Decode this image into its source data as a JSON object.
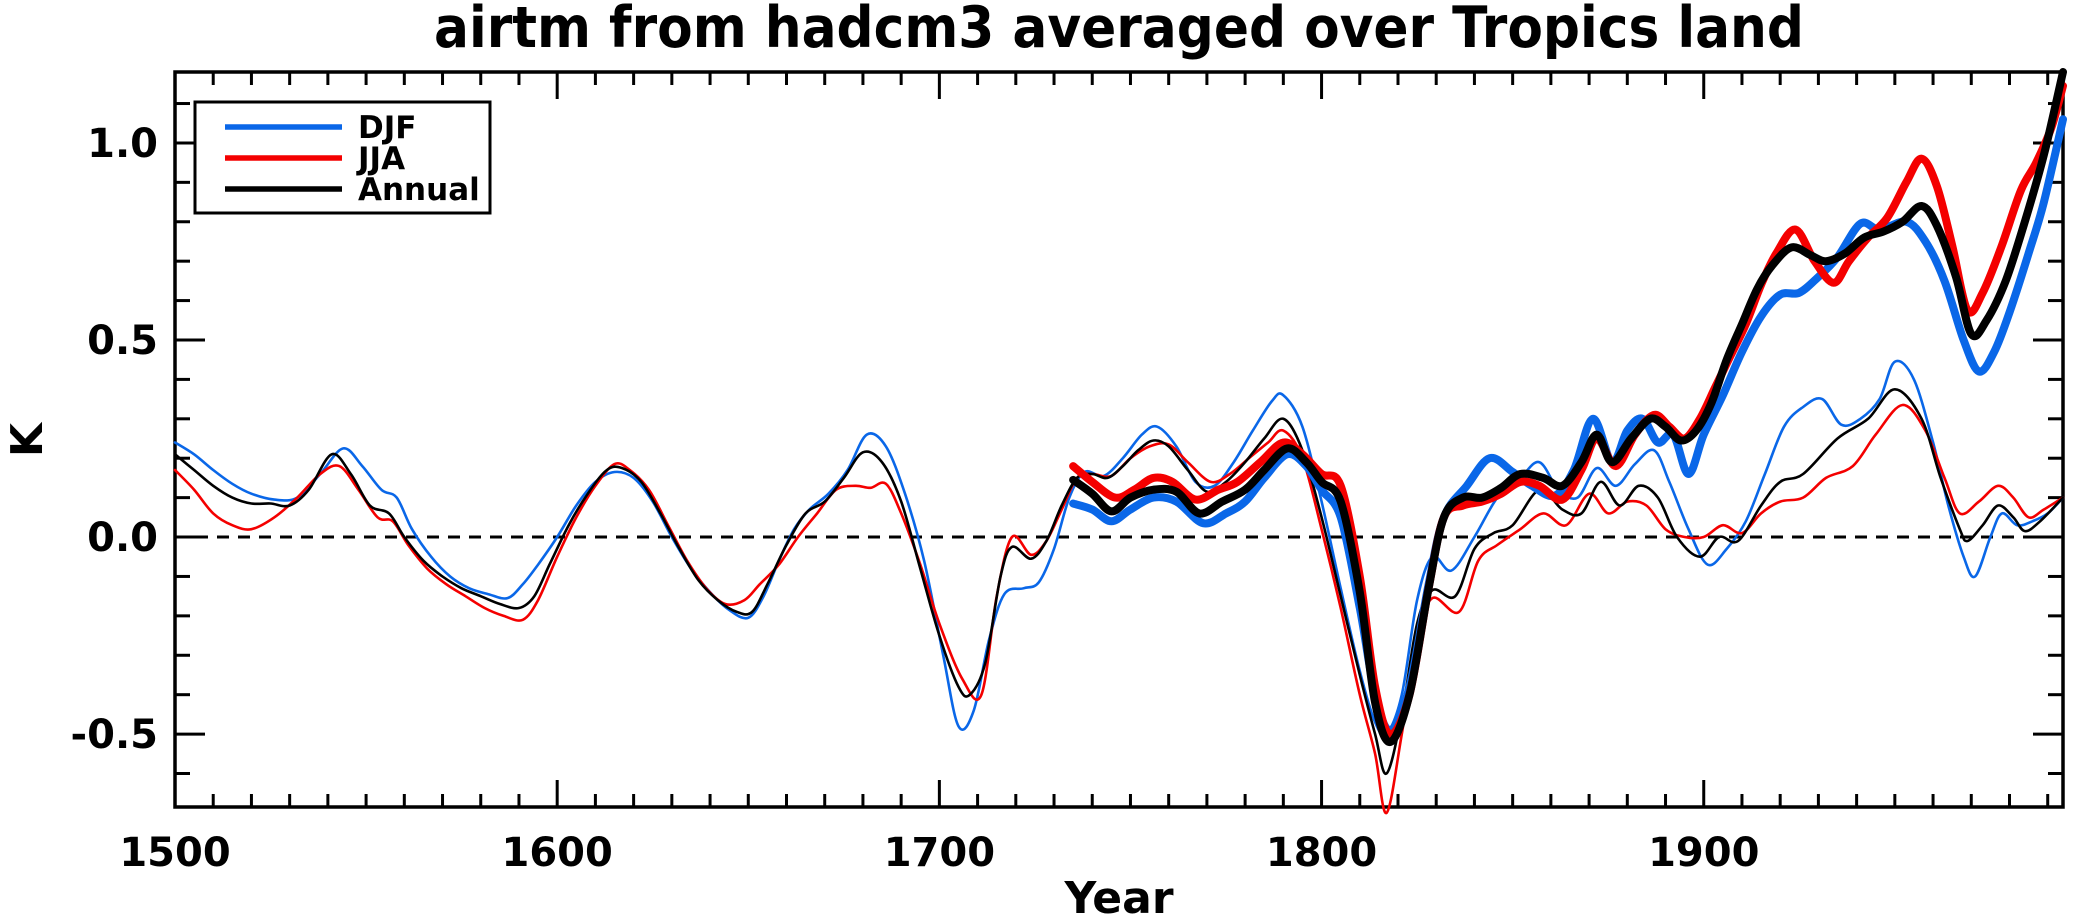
{
  "title": "airtm from hadcm3 averaged over Tropics land",
  "chart_data": {
    "type": "line",
    "title": "airtm from hadcm3 averaged over Tropics land",
    "xlabel": "Year",
    "ylabel": "K",
    "xlim": [
      1500,
      1994
    ],
    "ylim": [
      -0.685,
      1.18
    ],
    "grid": false,
    "background": "#FFFFFF",
    "frame_color": "#000000",
    "zero_line": {
      "value": 0.0,
      "style": "dashed",
      "color": "#000000"
    },
    "x_major_ticks": [
      1500,
      1600,
      1700,
      1800,
      1900
    ],
    "x_tick_labels": [
      "1500",
      "1600",
      "1700",
      "1800",
      "1900"
    ],
    "x_minor_step": 10,
    "y_major_ticks": [
      -0.5,
      0.0,
      0.5,
      1.0
    ],
    "y_tick_labels": [
      "-0.5",
      "0.0",
      "0.5",
      "1.0"
    ],
    "y_minor_step": 0.1,
    "legend": {
      "position": "top-left",
      "entries": [
        {
          "label": "DJF",
          "color": "#0A67E8"
        },
        {
          "label": "JJA",
          "color": "#F40000"
        },
        {
          "label": "Annual",
          "color": "#000000"
        }
      ]
    },
    "series": [
      {
        "name": "djf-natural-thin",
        "label": "DJF",
        "color": "#0A67E8",
        "line": "thin",
        "x": [
          1500,
          1505,
          1510,
          1515,
          1520,
          1526,
          1532,
          1538,
          1544,
          1549,
          1554,
          1558,
          1562,
          1567,
          1572,
          1577,
          1582,
          1587,
          1591,
          1595,
          1600,
          1605,
          1610,
          1615,
          1620,
          1625,
          1630,
          1635,
          1640,
          1645,
          1650,
          1654,
          1658,
          1662,
          1666,
          1671,
          1676,
          1681,
          1686,
          1691,
          1696,
          1701,
          1705,
          1709,
          1713,
          1717,
          1722,
          1726,
          1730,
          1734,
          1738,
          1743,
          1748,
          1753,
          1757,
          1762,
          1767,
          1772,
          1777,
          1782,
          1787,
          1790,
          1795,
          1800,
          1805,
          1810,
          1814,
          1817,
          1821,
          1825,
          1829,
          1834,
          1840,
          1846,
          1852,
          1857,
          1862,
          1867,
          1872,
          1877,
          1882,
          1887,
          1891,
          1896,
          1901,
          1906,
          1911,
          1916,
          1921,
          1926,
          1931,
          1936,
          1941,
          1946,
          1950,
          1955,
          1960,
          1964,
          1968,
          1971,
          1975,
          1978,
          1982,
          1986,
          1990,
          1994
        ],
        "y": [
          0.24,
          0.21,
          0.17,
          0.135,
          0.11,
          0.095,
          0.1,
          0.16,
          0.225,
          0.18,
          0.12,
          0.1,
          0.02,
          -0.05,
          -0.1,
          -0.13,
          -0.145,
          -0.155,
          -0.12,
          -0.07,
          0.0,
          0.08,
          0.14,
          0.165,
          0.15,
          0.09,
          0.0,
          -0.08,
          -0.14,
          -0.185,
          -0.205,
          -0.15,
          -0.06,
          0.02,
          0.07,
          0.11,
          0.17,
          0.26,
          0.23,
          0.11,
          -0.06,
          -0.3,
          -0.48,
          -0.44,
          -0.26,
          -0.145,
          -0.13,
          -0.115,
          -0.03,
          0.1,
          0.165,
          0.155,
          0.2,
          0.26,
          0.28,
          0.23,
          0.14,
          0.13,
          0.19,
          0.27,
          0.345,
          0.36,
          0.28,
          0.09,
          -0.13,
          -0.34,
          -0.47,
          -0.5,
          -0.4,
          -0.16,
          -0.05,
          -0.085,
          0.0,
          0.1,
          0.15,
          0.19,
          0.12,
          0.1,
          0.175,
          0.13,
          0.185,
          0.22,
          0.14,
          0.02,
          -0.07,
          -0.03,
          0.04,
          0.16,
          0.28,
          0.33,
          0.35,
          0.285,
          0.3,
          0.35,
          0.445,
          0.4,
          0.24,
          0.08,
          -0.05,
          -0.1,
          0.0,
          0.06,
          0.03,
          0.04,
          0.06,
          0.1
        ]
      },
      {
        "name": "jja-natural-thin",
        "label": "JJA",
        "color": "#F40000",
        "line": "thin",
        "x": [
          1500,
          1505,
          1510,
          1515,
          1520,
          1526,
          1532,
          1538,
          1543,
          1548,
          1553,
          1557,
          1561,
          1566,
          1571,
          1576,
          1581,
          1586,
          1591,
          1595,
          1600,
          1605,
          1610,
          1615,
          1619,
          1624,
          1629,
          1634,
          1639,
          1644,
          1649,
          1653,
          1658,
          1663,
          1668,
          1673,
          1678,
          1682,
          1686,
          1690,
          1695,
          1700,
          1706,
          1711,
          1715,
          1719,
          1724,
          1728,
          1732,
          1736,
          1740,
          1745,
          1750,
          1755,
          1760,
          1765,
          1771,
          1776,
          1781,
          1786,
          1790,
          1795,
          1800,
          1805,
          1810,
          1814,
          1817,
          1821,
          1825,
          1829,
          1836,
          1841,
          1846,
          1852,
          1858,
          1864,
          1870,
          1875,
          1880,
          1885,
          1890,
          1895,
          1900,
          1905,
          1910,
          1915,
          1920,
          1926,
          1932,
          1939,
          1945,
          1952,
          1958,
          1963,
          1967,
          1972,
          1977,
          1981,
          1985,
          1989,
          1994
        ],
        "y": [
          0.17,
          0.12,
          0.06,
          0.03,
          0.02,
          0.05,
          0.1,
          0.16,
          0.18,
          0.12,
          0.05,
          0.04,
          -0.02,
          -0.08,
          -0.12,
          -0.15,
          -0.18,
          -0.2,
          -0.21,
          -0.16,
          -0.05,
          0.05,
          0.13,
          0.185,
          0.17,
          0.12,
          0.03,
          -0.06,
          -0.13,
          -0.17,
          -0.16,
          -0.12,
          -0.07,
          0.0,
          0.06,
          0.12,
          0.13,
          0.125,
          0.135,
          0.06,
          -0.07,
          -0.22,
          -0.36,
          -0.4,
          -0.15,
          0.0,
          -0.045,
          -0.01,
          0.07,
          0.15,
          0.16,
          0.155,
          0.2,
          0.23,
          0.235,
          0.19,
          0.14,
          0.16,
          0.2,
          0.24,
          0.27,
          0.2,
          0.02,
          -0.18,
          -0.4,
          -0.55,
          -0.7,
          -0.5,
          -0.26,
          -0.155,
          -0.19,
          -0.06,
          -0.02,
          0.02,
          0.06,
          0.03,
          0.11,
          0.06,
          0.09,
          0.08,
          0.02,
          0.0,
          0.0,
          0.03,
          0.01,
          0.06,
          0.09,
          0.1,
          0.15,
          0.18,
          0.26,
          0.335,
          0.27,
          0.15,
          0.06,
          0.09,
          0.13,
          0.1,
          0.05,
          0.07,
          0.1
        ]
      },
      {
        "name": "annual-natural-thin",
        "label": "Annual",
        "color": "#000000",
        "line": "thin",
        "x": [
          1500,
          1505,
          1510,
          1515,
          1520,
          1525,
          1530,
          1535,
          1541,
          1546,
          1551,
          1556,
          1560,
          1565,
          1570,
          1575,
          1580,
          1585,
          1590,
          1594,
          1598,
          1603,
          1608,
          1613,
          1617,
          1622,
          1627,
          1632,
          1637,
          1642,
          1647,
          1651,
          1655,
          1660,
          1665,
          1670,
          1675,
          1680,
          1685,
          1690,
          1695,
          1700,
          1705,
          1708,
          1712,
          1716,
          1719,
          1724,
          1728,
          1732,
          1736,
          1740,
          1744,
          1748,
          1752,
          1756,
          1760,
          1765,
          1770,
          1775,
          1780,
          1785,
          1790,
          1795,
          1800,
          1805,
          1810,
          1814,
          1817,
          1821,
          1825,
          1829,
          1835,
          1840,
          1845,
          1850,
          1857,
          1863,
          1868,
          1873,
          1878,
          1883,
          1888,
          1893,
          1899,
          1904,
          1909,
          1915,
          1920,
          1926,
          1935,
          1943,
          1950,
          1957,
          1962,
          1967,
          1969,
          1973,
          1977,
          1981,
          1984,
          1988,
          1994
        ],
        "y": [
          0.21,
          0.17,
          0.13,
          0.1,
          0.085,
          0.085,
          0.08,
          0.12,
          0.21,
          0.16,
          0.08,
          0.06,
          0.0,
          -0.06,
          -0.1,
          -0.13,
          -0.15,
          -0.17,
          -0.18,
          -0.15,
          -0.07,
          0.03,
          0.11,
          0.17,
          0.175,
          0.14,
          0.06,
          -0.03,
          -0.11,
          -0.16,
          -0.19,
          -0.19,
          -0.12,
          -0.02,
          0.06,
          0.09,
          0.15,
          0.215,
          0.19,
          0.09,
          -0.08,
          -0.25,
          -0.38,
          -0.4,
          -0.32,
          -0.1,
          -0.025,
          -0.055,
          -0.01,
          0.08,
          0.15,
          0.16,
          0.15,
          0.18,
          0.22,
          0.245,
          0.23,
          0.17,
          0.115,
          0.14,
          0.19,
          0.25,
          0.3,
          0.22,
          0.05,
          -0.15,
          -0.35,
          -0.5,
          -0.6,
          -0.45,
          -0.22,
          -0.135,
          -0.15,
          -0.03,
          0.01,
          0.03,
          0.12,
          0.07,
          0.06,
          0.14,
          0.08,
          0.13,
          0.1,
          0.0,
          -0.05,
          0.0,
          -0.01,
          0.08,
          0.14,
          0.16,
          0.25,
          0.3,
          0.375,
          0.3,
          0.15,
          0.02,
          -0.01,
          0.03,
          0.08,
          0.05,
          0.015,
          0.04,
          0.1
        ]
      },
      {
        "name": "djf-allforcings-thick",
        "label": "DJF",
        "color": "#0A67E8",
        "line": "thick",
        "x": [
          1735,
          1740,
          1745,
          1750,
          1756,
          1762,
          1769,
          1775,
          1780,
          1785,
          1791,
          1796,
          1800,
          1805,
          1810,
          1814,
          1818,
          1823,
          1828,
          1832,
          1838,
          1844,
          1850,
          1855,
          1861,
          1866,
          1871,
          1876,
          1880,
          1884,
          1888,
          1892,
          1896,
          1900,
          1905,
          1910,
          1915,
          1920,
          1925,
          1930,
          1935,
          1941,
          1946,
          1953,
          1958,
          1963,
          1968,
          1972,
          1976,
          1980,
          1985,
          1989,
          1994
        ],
        "y": [
          0.085,
          0.07,
          0.04,
          0.07,
          0.1,
          0.09,
          0.035,
          0.06,
          0.09,
          0.15,
          0.21,
          0.18,
          0.12,
          0.05,
          -0.18,
          -0.4,
          -0.49,
          -0.38,
          -0.12,
          0.05,
          0.13,
          0.2,
          0.165,
          0.13,
          0.105,
          0.17,
          0.3,
          0.19,
          0.27,
          0.3,
          0.24,
          0.26,
          0.16,
          0.26,
          0.36,
          0.47,
          0.56,
          0.615,
          0.62,
          0.66,
          0.71,
          0.795,
          0.78,
          0.8,
          0.75,
          0.65,
          0.5,
          0.42,
          0.47,
          0.57,
          0.72,
          0.85,
          1.06
        ]
      },
      {
        "name": "jja-allforcings-thick",
        "label": "JJA",
        "color": "#F40000",
        "line": "thick",
        "x": [
          1735,
          1740,
          1746,
          1751,
          1756,
          1761,
          1767,
          1773,
          1778,
          1784,
          1790,
          1795,
          1800,
          1805,
          1810,
          1814,
          1818,
          1823,
          1828,
          1832,
          1837,
          1842,
          1847,
          1852,
          1857,
          1863,
          1868,
          1872,
          1877,
          1882,
          1887,
          1891,
          1895,
          1899,
          1903,
          1907,
          1911,
          1915,
          1919,
          1924,
          1929,
          1934,
          1938,
          1943,
          1948,
          1953,
          1957,
          1961,
          1965,
          1969,
          1973,
          1978,
          1983,
          1987,
          1991,
          1994
        ],
        "y": [
          0.18,
          0.14,
          0.1,
          0.12,
          0.15,
          0.14,
          0.095,
          0.12,
          0.14,
          0.19,
          0.24,
          0.21,
          0.16,
          0.13,
          -0.1,
          -0.38,
          -0.5,
          -0.4,
          -0.13,
          0.05,
          0.08,
          0.09,
          0.11,
          0.14,
          0.13,
          0.095,
          0.17,
          0.25,
          0.18,
          0.26,
          0.31,
          0.28,
          0.25,
          0.3,
          0.38,
          0.46,
          0.54,
          0.64,
          0.72,
          0.78,
          0.7,
          0.645,
          0.7,
          0.76,
          0.81,
          0.9,
          0.96,
          0.89,
          0.74,
          0.575,
          0.62,
          0.74,
          0.88,
          0.95,
          1.04,
          1.145
        ]
      },
      {
        "name": "annual-allforcings-thick",
        "label": "Annual",
        "color": "#000000",
        "line": "thick",
        "x": [
          1735,
          1740,
          1745,
          1750,
          1756,
          1762,
          1768,
          1774,
          1780,
          1785,
          1791,
          1796,
          1800,
          1805,
          1810,
          1814,
          1818,
          1823,
          1828,
          1832,
          1837,
          1842,
          1847,
          1852,
          1858,
          1863,
          1868,
          1872,
          1876,
          1881,
          1886,
          1890,
          1894,
          1898,
          1902,
          1906,
          1910,
          1914,
          1918,
          1923,
          1928,
          1932,
          1937,
          1942,
          1947,
          1952,
          1957,
          1961,
          1966,
          1970,
          1974,
          1979,
          1984,
          1989,
          1994
        ],
        "y": [
          0.145,
          0.11,
          0.065,
          0.1,
          0.12,
          0.115,
          0.06,
          0.09,
          0.12,
          0.17,
          0.225,
          0.19,
          0.14,
          0.09,
          -0.14,
          -0.42,
          -0.52,
          -0.4,
          -0.13,
          0.05,
          0.1,
          0.1,
          0.125,
          0.16,
          0.15,
          0.13,
          0.19,
          0.26,
          0.19,
          0.25,
          0.3,
          0.28,
          0.245,
          0.27,
          0.34,
          0.45,
          0.54,
          0.63,
          0.69,
          0.735,
          0.715,
          0.7,
          0.72,
          0.76,
          0.775,
          0.8,
          0.84,
          0.79,
          0.66,
          0.515,
          0.55,
          0.65,
          0.8,
          0.97,
          1.18
        ]
      }
    ]
  }
}
